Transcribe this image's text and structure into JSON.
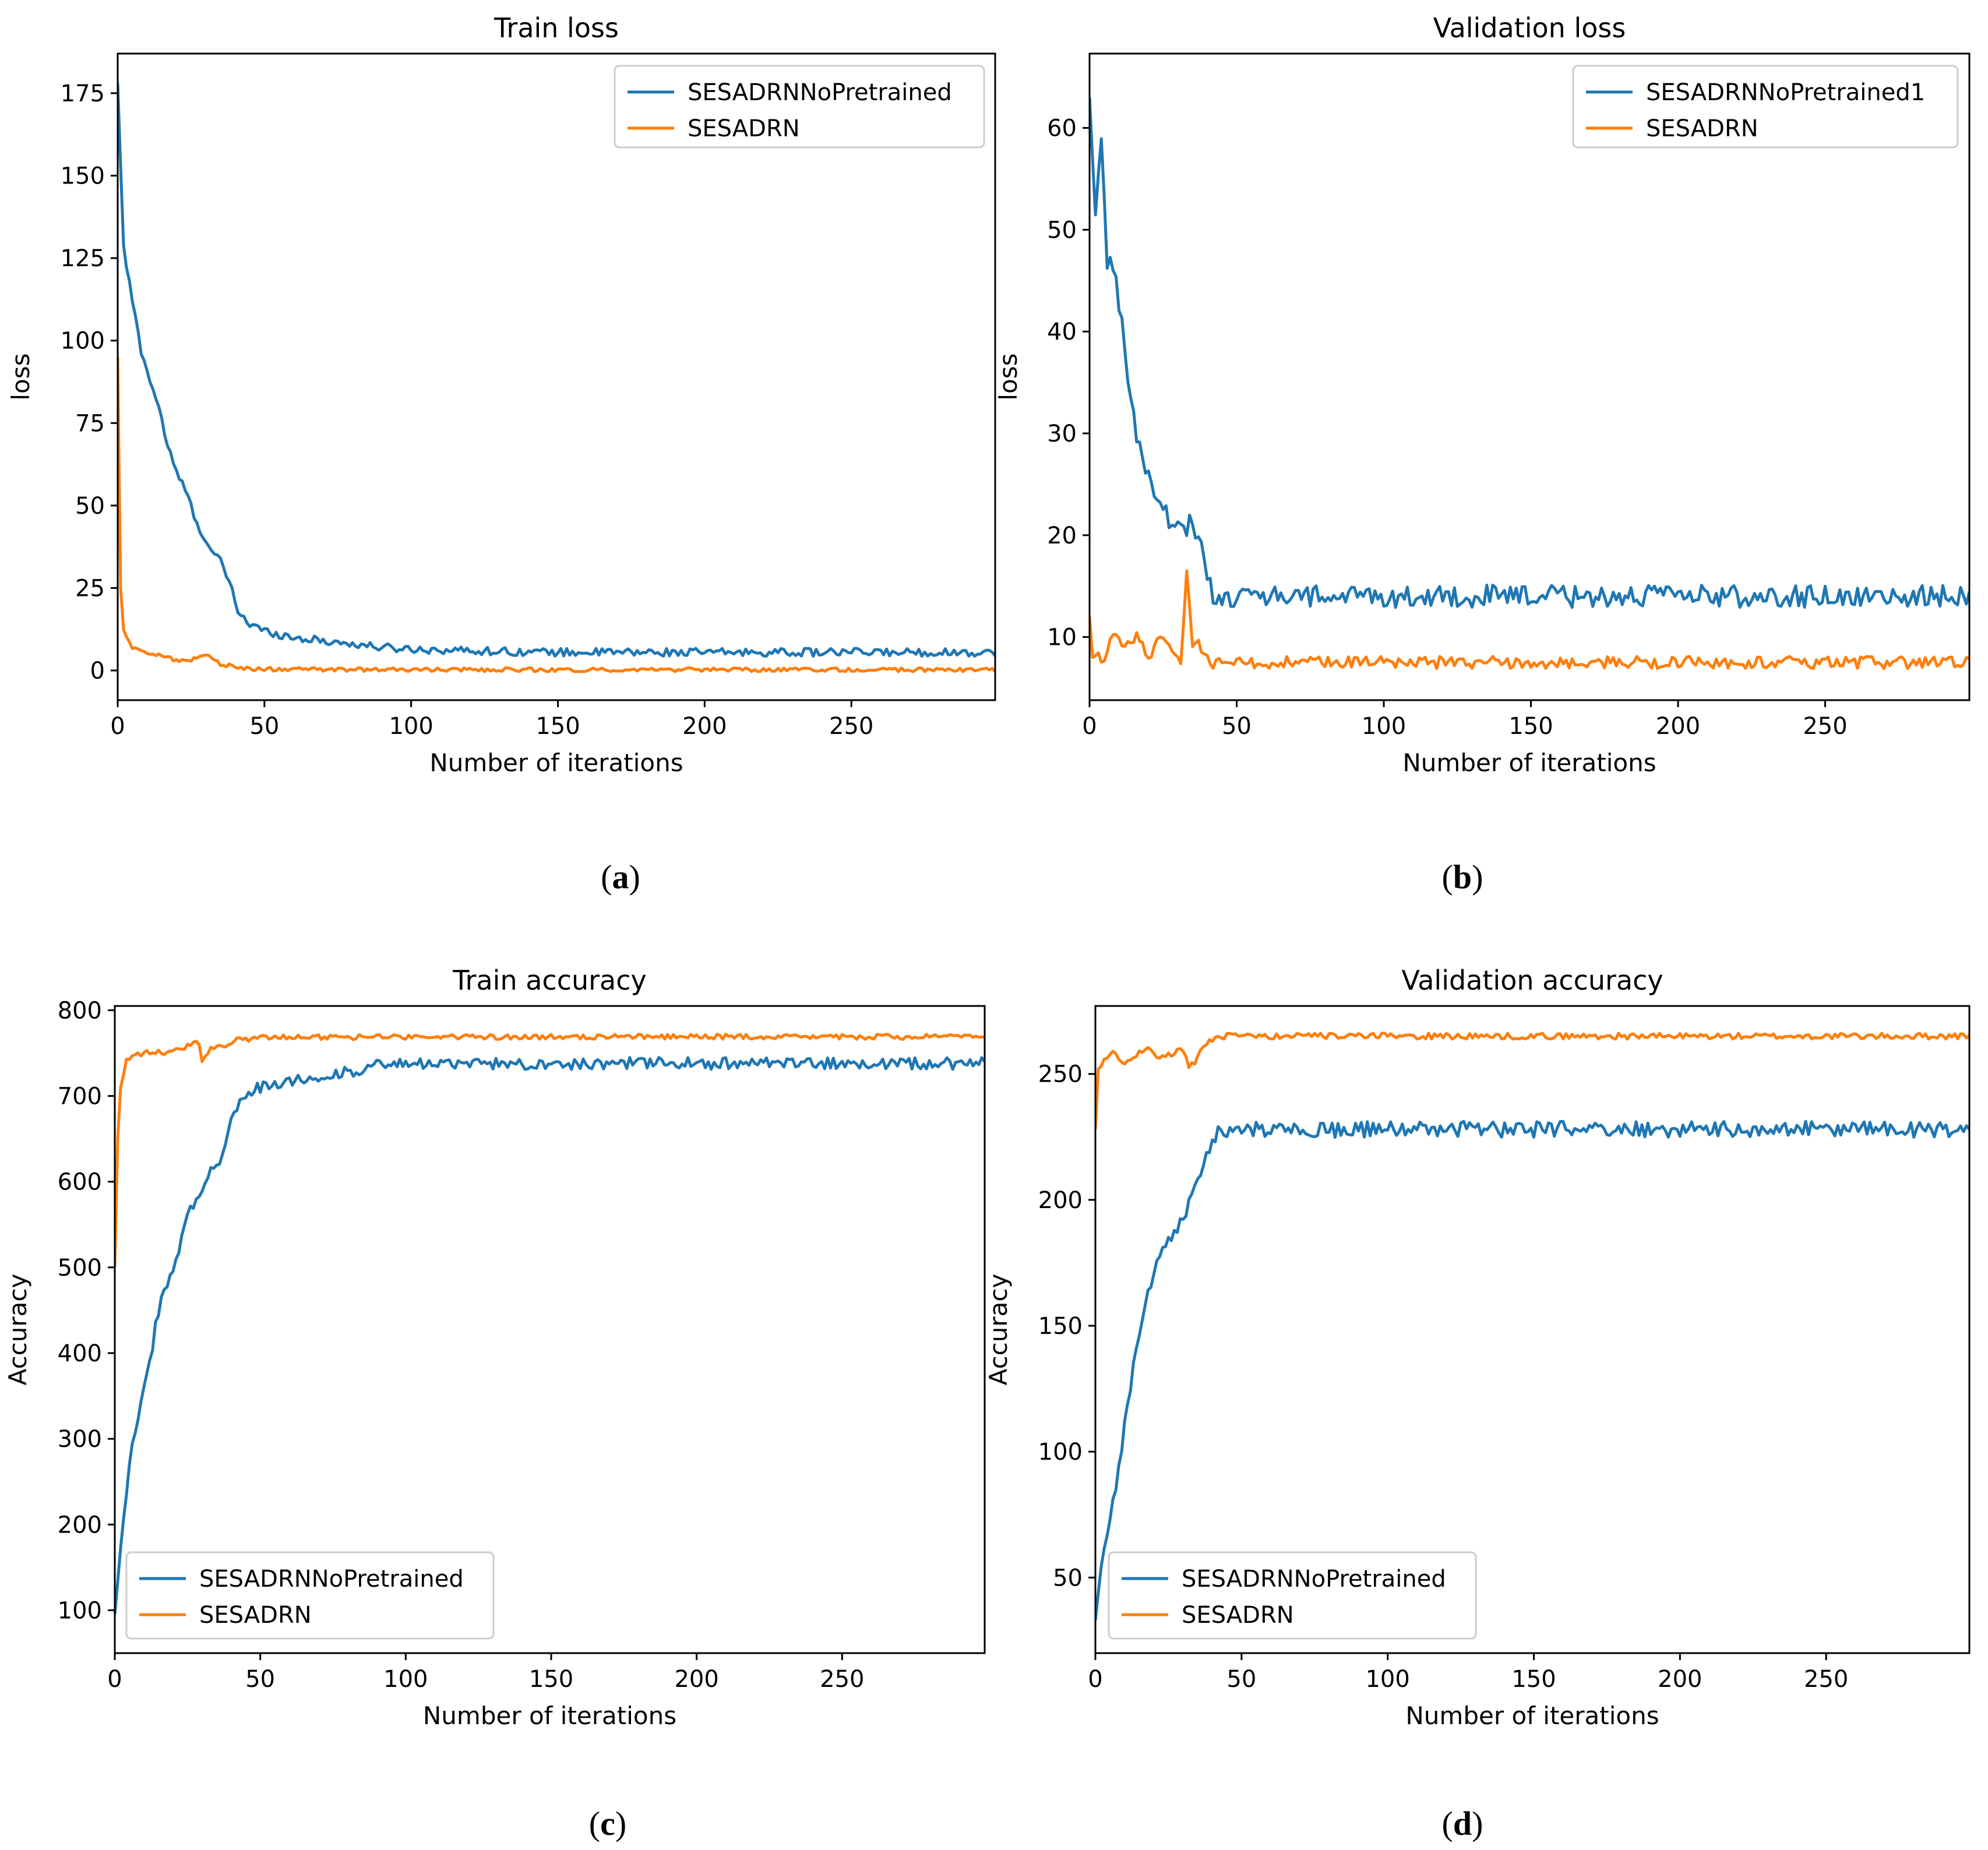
{
  "chart_data": [
    {
      "type": "line",
      "panel": "a",
      "title": "Train loss",
      "xlabel": "Number of iterations",
      "ylabel": "loss",
      "xlim": [
        0,
        299
      ],
      "ylim": [
        -9,
        187
      ],
      "xticks": [
        0,
        50,
        100,
        150,
        200,
        250
      ],
      "yticks": [
        0,
        25,
        50,
        75,
        100,
        125,
        150,
        175
      ],
      "legend_position": "top-right",
      "series": [
        {
          "name": "SESADRNNoPretrained",
          "color": "#1f77b4",
          "points": [
            [
              0,
              178
            ],
            [
              2,
              128
            ],
            [
              5,
              112
            ],
            [
              8,
              97
            ],
            [
              11,
              88
            ],
            [
              14,
              80
            ],
            [
              17,
              68
            ],
            [
              20,
              60
            ],
            [
              23,
              55
            ],
            [
              26,
              47
            ],
            [
              29,
              41
            ],
            [
              32,
              36
            ],
            [
              35,
              33
            ],
            [
              38,
              27
            ],
            [
              41,
              18
            ],
            [
              45,
              14
            ],
            [
              50,
              12
            ],
            [
              60,
              10
            ],
            [
              70,
              9
            ],
            [
              80,
              8
            ],
            [
              90,
              7
            ],
            [
              100,
              6.5
            ],
            [
              120,
              6
            ],
            [
              150,
              5.5
            ],
            [
              200,
              5.5
            ],
            [
              250,
              5.5
            ],
            [
              299,
              5.5
            ]
          ],
          "noise": 1.2
        },
        {
          "name": "SESADRN",
          "color": "#ff7f0e",
          "points": [
            [
              0,
              95
            ],
            [
              1,
              25
            ],
            [
              2,
              12
            ],
            [
              5,
              7
            ],
            [
              10,
              5
            ],
            [
              15,
              5
            ],
            [
              20,
              3
            ],
            [
              25,
              3
            ],
            [
              30,
              5
            ],
            [
              35,
              2
            ],
            [
              40,
              1
            ],
            [
              45,
              0.5
            ],
            [
              60,
              0.3
            ],
            [
              100,
              0.2
            ],
            [
              299,
              0.2
            ]
          ],
          "noise": 0.6
        }
      ]
    },
    {
      "type": "line",
      "panel": "b",
      "title": "Validation loss",
      "xlabel": "Number of iterations",
      "ylabel": "loss",
      "xlim": [
        0,
        299
      ],
      "ylim": [
        3.8,
        67.3
      ],
      "xticks": [
        0,
        50,
        100,
        150,
        200,
        250
      ],
      "yticks": [
        10,
        20,
        30,
        40,
        50,
        60
      ],
      "legend_position": "top-right",
      "series": [
        {
          "name": "SESADRNNoPretrained1",
          "color": "#1f77b4",
          "points": [
            [
              0,
              63
            ],
            [
              2,
              51
            ],
            [
              4,
              59
            ],
            [
              6,
              47
            ],
            [
              8,
              47
            ],
            [
              10,
              43
            ],
            [
              12,
              38
            ],
            [
              14,
              33
            ],
            [
              16,
              30
            ],
            [
              18,
              27
            ],
            [
              20,
              26
            ],
            [
              22,
              24
            ],
            [
              24,
              23
            ],
            [
              26,
              22
            ],
            [
              28,
              21
            ],
            [
              30,
              21
            ],
            [
              32,
              20
            ],
            [
              34,
              21
            ],
            [
              36,
              20
            ],
            [
              38,
              19
            ],
            [
              40,
              16
            ],
            [
              42,
              14
            ],
            [
              50,
              14
            ],
            [
              60,
              14
            ],
            [
              100,
              14
            ],
            [
              150,
              14
            ],
            [
              200,
              14
            ],
            [
              250,
              14
            ],
            [
              299,
              14
            ]
          ],
          "noise": 1.1
        },
        {
          "name": "SESADRN",
          "color": "#ff7f0e",
          "points": [
            [
              0,
              12
            ],
            [
              1,
              8
            ],
            [
              5,
              8
            ],
            [
              8,
              10
            ],
            [
              12,
              9
            ],
            [
              16,
              10
            ],
            [
              20,
              8
            ],
            [
              24,
              10
            ],
            [
              28,
              9
            ],
            [
              31,
              7
            ],
            [
              33,
              17
            ],
            [
              35,
              9
            ],
            [
              37,
              10
            ],
            [
              39,
              8
            ],
            [
              42,
              7.5
            ],
            [
              50,
              7.5
            ],
            [
              100,
              7.5
            ],
            [
              150,
              7.5
            ],
            [
              200,
              7.5
            ],
            [
              250,
              7.5
            ],
            [
              299,
              7.5
            ]
          ],
          "noise": 0.6
        }
      ]
    },
    {
      "type": "line",
      "panel": "c",
      "title": "Train accuracy",
      "xlabel": "Number of iterations",
      "ylabel": "Accuracy",
      "xlim": [
        0,
        299
      ],
      "ylim": [
        50,
        805
      ],
      "xticks": [
        0,
        50,
        100,
        150,
        200,
        250
      ],
      "yticks": [
        100,
        200,
        300,
        400,
        500,
        600,
        700,
        800
      ],
      "legend_position": "lower-left",
      "series": [
        {
          "name": "SESADRNNoPretrained",
          "color": "#1f77b4",
          "points": [
            [
              0,
              95
            ],
            [
              3,
              210
            ],
            [
              6,
              300
            ],
            [
              9,
              340
            ],
            [
              12,
              390
            ],
            [
              15,
              450
            ],
            [
              18,
              480
            ],
            [
              21,
              510
            ],
            [
              24,
              550
            ],
            [
              27,
              575
            ],
            [
              30,
              590
            ],
            [
              33,
              610
            ],
            [
              36,
              625
            ],
            [
              39,
              660
            ],
            [
              42,
              690
            ],
            [
              45,
              700
            ],
            [
              50,
              710
            ],
            [
              60,
              718
            ],
            [
              70,
              722
            ],
            [
              80,
              728
            ],
            [
              90,
              735
            ],
            [
              100,
              737
            ],
            [
              150,
              738
            ],
            [
              200,
              738
            ],
            [
              250,
              738
            ],
            [
              299,
              738
            ]
          ],
          "noise": 7
        },
        {
          "name": "SESADRN",
          "color": "#ff7f0e",
          "points": [
            [
              0,
              500
            ],
            [
              1,
              650
            ],
            [
              2,
              710
            ],
            [
              4,
              740
            ],
            [
              8,
              748
            ],
            [
              12,
              752
            ],
            [
              16,
              750
            ],
            [
              20,
              755
            ],
            [
              25,
              758
            ],
            [
              29,
              762
            ],
            [
              30,
              742
            ],
            [
              33,
              755
            ],
            [
              38,
              760
            ],
            [
              42,
              765
            ],
            [
              50,
              768
            ],
            [
              100,
              769
            ],
            [
              150,
              769
            ],
            [
              200,
              769
            ],
            [
              250,
              769
            ],
            [
              299,
              769
            ]
          ],
          "noise": 3
        }
      ]
    },
    {
      "type": "line",
      "panel": "d",
      "title": "Validation accuracy",
      "xlabel": "Number of iterations",
      "ylabel": "Accuracy",
      "xlim": [
        0,
        299
      ],
      "ylim": [
        20,
        277
      ],
      "xticks": [
        0,
        50,
        100,
        150,
        200,
        250
      ],
      "yticks": [
        50,
        100,
        150,
        200,
        250
      ],
      "legend_position": "lower-left",
      "series": [
        {
          "name": "SESADRNNoPretrained",
          "color": "#1f77b4",
          "points": [
            [
              0,
              33
            ],
            [
              2,
              55
            ],
            [
              4,
              65
            ],
            [
              6,
              80
            ],
            [
              8,
              92
            ],
            [
              10,
              110
            ],
            [
              12,
              125
            ],
            [
              14,
              140
            ],
            [
              16,
              155
            ],
            [
              18,
              165
            ],
            [
              20,
              170
            ],
            [
              22,
              178
            ],
            [
              24,
              182
            ],
            [
              26,
              187
            ],
            [
              28,
              190
            ],
            [
              30,
              195
            ],
            [
              32,
              198
            ],
            [
              34,
              205
            ],
            [
              36,
              212
            ],
            [
              38,
              218
            ],
            [
              40,
              222
            ],
            [
              42,
              226
            ],
            [
              45,
              227
            ],
            [
              50,
              228
            ],
            [
              70,
              228
            ],
            [
              100,
              228
            ],
            [
              150,
              228
            ],
            [
              200,
              228
            ],
            [
              250,
              228
            ],
            [
              299,
              228
            ]
          ],
          "noise": 3.2
        },
        {
          "name": "SESADRN",
          "color": "#ff7f0e",
          "points": [
            [
              0,
              228
            ],
            [
              1,
              252
            ],
            [
              3,
              255
            ],
            [
              6,
              258
            ],
            [
              10,
              255
            ],
            [
              14,
              258
            ],
            [
              18,
              260
            ],
            [
              22,
              256
            ],
            [
              26,
              258
            ],
            [
              30,
              260
            ],
            [
              32,
              252
            ],
            [
              34,
              255
            ],
            [
              37,
              262
            ],
            [
              40,
              264
            ],
            [
              45,
              265
            ],
            [
              100,
              265
            ],
            [
              150,
              265
            ],
            [
              200,
              265
            ],
            [
              250,
              265
            ],
            [
              299,
              265
            ]
          ],
          "noise": 1.2
        }
      ]
    }
  ],
  "subfigure_labels": [
    {
      "open": "(",
      "letter": "a",
      "close": ")"
    },
    {
      "open": "(",
      "letter": "b",
      "close": ")"
    },
    {
      "open": "(",
      "letter": "c",
      "close": ")"
    },
    {
      "open": "(",
      "letter": "d",
      "close": ")"
    }
  ]
}
